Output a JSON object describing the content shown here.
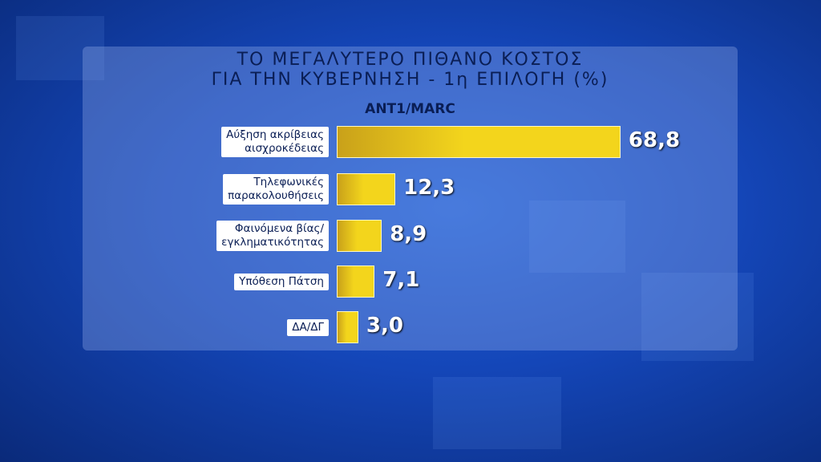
{
  "chart_data": {
    "type": "bar",
    "orientation": "horizontal",
    "title": "ΤΟ ΜΕΓΑΛΥΤΕΡΟ ΠΙΘΑΝΟ ΚΟΣΤΟΣ\nΓΙΑ ΤΗΝ ΚΥΒΕΡΝΗΣΗ - 1η ΕΠΙΛΟΓΗ (%)",
    "subtitle": "ANT1/MARC",
    "categories": [
      "Αύξηση ακρίβειας\nαισχροκέδειας",
      "Τηλεφωνικές\nπαρακολουθήσεις",
      "Φαινόμενα βίας/\nεγκληματικότητας",
      "Υπόθεση Πάτση",
      "ΔΑ/ΔΓ"
    ],
    "values": [
      68.8,
      12.3,
      8.9,
      7.1,
      3.0
    ],
    "value_labels": [
      "68,8",
      "12,3",
      "8,9",
      "7,1",
      "3,0"
    ],
    "color": "#f3d51c"
  }
}
